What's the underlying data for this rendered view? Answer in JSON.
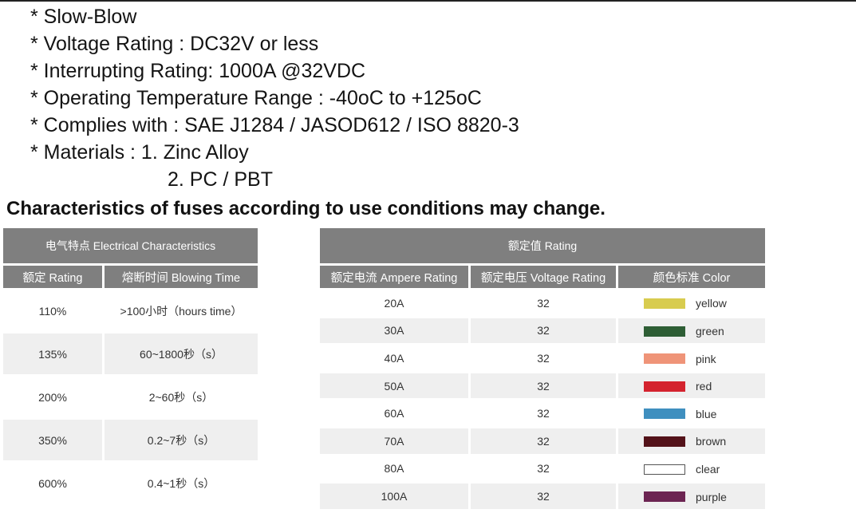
{
  "specs": [
    "* Slow-Blow",
    "* Voltage Rating : DC32V or less",
    "* Interrupting Rating: 1000A @32VDC",
    "* Operating Temperature Range : -40oC to +125oC",
    "* Complies with : SAE J1284 / JASOD612 / ISO 8820-3",
    "* Materials : 1. Zinc Alloy",
    "2. PC / PBT"
  ],
  "headline": "Characteristics of fuses according to use conditions may change.",
  "electrical": {
    "group_header": "电气特点 Electrical Characteristics",
    "columns": [
      "额定 Rating",
      "熔断时间 Blowing Time"
    ],
    "rows": [
      [
        "110%",
        ">100小时（hours time）"
      ],
      [
        "135%",
        "60~1800秒（s）"
      ],
      [
        "200%",
        "2~60秒（s）"
      ],
      [
        "350%",
        "0.2~7秒（s）"
      ],
      [
        "600%",
        "0.4~1秒（s）"
      ]
    ]
  },
  "rating": {
    "group_header": "额定值 Rating",
    "columns": [
      "额定电流 Ampere Rating",
      "额定电压 Voltage Rating",
      "颜色标准  Color"
    ],
    "rows": [
      {
        "ampere": "20A",
        "voltage": "32",
        "color": "yellow",
        "swatch": "#d8cc4f"
      },
      {
        "ampere": "30A",
        "voltage": "32",
        "color": "green",
        "swatch": "#2e5e35"
      },
      {
        "ampere": "40A",
        "voltage": "32",
        "color": "pink",
        "swatch": "#ef9478"
      },
      {
        "ampere": "50A",
        "voltage": "32",
        "color": "red",
        "swatch": "#d4232e"
      },
      {
        "ampere": "60A",
        "voltage": "32",
        "color": "blue",
        "swatch": "#3f8fbf"
      },
      {
        "ampere": "70A",
        "voltage": "32",
        "color": "brown",
        "swatch": "#531219"
      },
      {
        "ampere": "80A",
        "voltage": "32",
        "color": "clear",
        "swatch": "#ffffff"
      },
      {
        "ampere": "100A",
        "voltage": "32",
        "color": "purple",
        "swatch": "#6c2452"
      }
    ]
  }
}
